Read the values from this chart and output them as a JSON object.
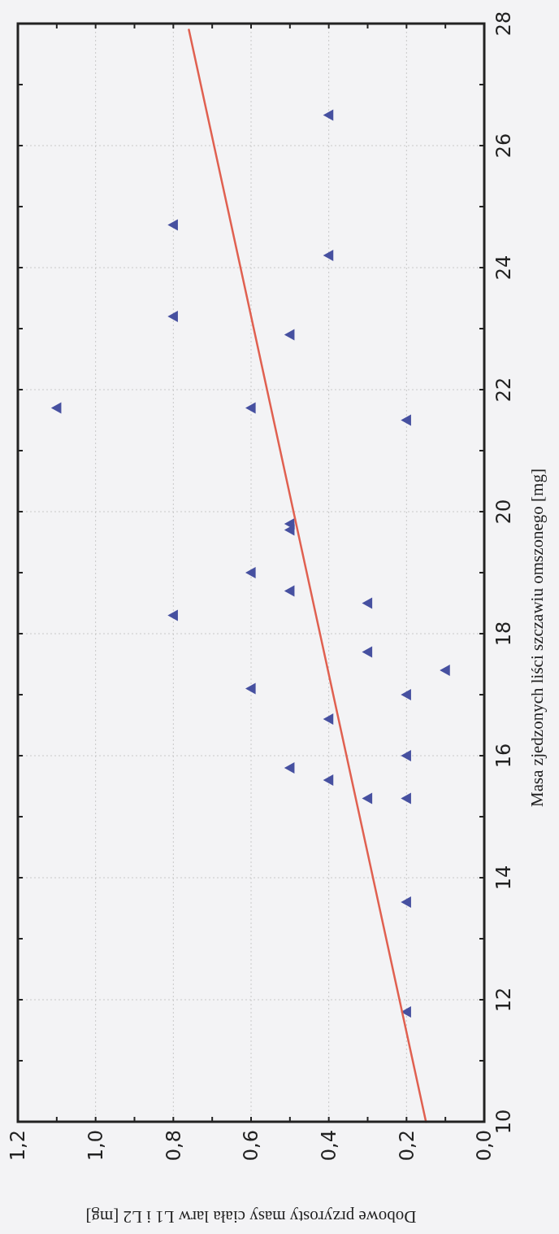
{
  "chart_data": {
    "type": "scatter",
    "xlabel": "Dobowe przyrosty masy ciała larw L1 i L2 [mg]",
    "ylabel": "Masa zjedzonych liści szczawiu omszonego [mg]",
    "xlim": [
      1.2,
      0
    ],
    "ylim": [
      10,
      28
    ],
    "yticks": [
      10,
      {
        "value": 11,
        "label": null
      },
      12,
      {
        "value": 13,
        "label": null
      },
      14,
      {
        "value": 15,
        "label": null
      },
      16,
      {
        "value": 17,
        "label": null
      },
      18,
      {
        "value": 19,
        "label": null
      },
      20,
      {
        "value": 21,
        "label": null
      },
      22,
      {
        "value": 23,
        "label": null
      },
      24,
      {
        "value": 25,
        "label": null
      },
      26,
      {
        "value": 27,
        "label": null
      },
      28
    ],
    "xticks": [
      {
        "value": 1.2,
        "label": "1,2"
      },
      {
        "value": 1.1,
        "label": null
      },
      {
        "value": 1.0,
        "label": "1,0"
      },
      {
        "value": 0.9,
        "label": null
      },
      {
        "value": 0.8,
        "label": "0,8"
      },
      {
        "value": 0.7,
        "label": null
      },
      {
        "value": 0.6,
        "label": "0,6"
      },
      {
        "value": 0.5,
        "label": null
      },
      {
        "value": 0.4,
        "label": "0,4"
      },
      {
        "value": 0.3,
        "label": null
      },
      {
        "value": 0.2,
        "label": "0,2"
      },
      {
        "value": 0.1,
        "label": null
      },
      {
        "value": 0,
        "label": "0,0"
      }
    ],
    "grid": true,
    "series": [
      {
        "color": "#4650a0",
        "marker": "triangle",
        "x": [
          0.4,
          0.8,
          0.4,
          0.8,
          0.5,
          1.1,
          0.6,
          0.2,
          0.5,
          0.5,
          0.6,
          0.5,
          0.3,
          0.8,
          0.3,
          0.1,
          0.6,
          0.2,
          0.4,
          0.2,
          0.5,
          0.4,
          0.3,
          0.2,
          0.2,
          0.2
        ],
        "values": [
          26.5,
          24.7,
          24.2,
          23.2,
          22.9,
          21.7,
          21.7,
          21.5,
          19.8,
          19.7,
          19.0,
          18.7,
          18.5,
          18.3,
          17.7,
          17.4,
          17.1,
          17.0,
          16.6,
          16.0,
          15.8,
          15.6,
          15.3,
          15.3,
          13.6,
          11.8
        ]
      },
      {
        "type": "line",
        "color": "#e06050",
        "marker": "none",
        "line_style": "solid",
        "x": [
          0.15,
          0.76
        ],
        "values": [
          10,
          27.9
        ]
      }
    ]
  }
}
